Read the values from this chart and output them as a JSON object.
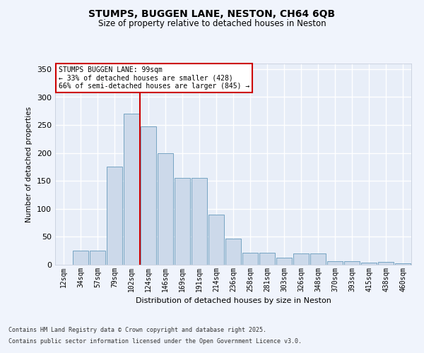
{
  "title_line1": "STUMPS, BUGGEN LANE, NESTON, CH64 6QB",
  "title_line2": "Size of property relative to detached houses in Neston",
  "xlabel": "Distribution of detached houses by size in Neston",
  "ylabel": "Number of detached properties",
  "categories": [
    "12sqm",
    "34sqm",
    "57sqm",
    "79sqm",
    "102sqm",
    "124sqm",
    "146sqm",
    "169sqm",
    "191sqm",
    "214sqm",
    "236sqm",
    "258sqm",
    "281sqm",
    "303sqm",
    "326sqm",
    "348sqm",
    "370sqm",
    "393sqm",
    "415sqm",
    "438sqm",
    "460sqm"
  ],
  "values": [
    0,
    25,
    25,
    175,
    270,
    248,
    200,
    155,
    155,
    90,
    47,
    22,
    22,
    13,
    20,
    20,
    6,
    6,
    4,
    5,
    2
  ],
  "bar_color": "#ccd9ea",
  "bar_edge_color": "#6699bb",
  "bg_color": "#e8eef8",
  "fig_bg_color": "#f0f4fc",
  "grid_color": "#d0d8e8",
  "red_line_index": 4,
  "annotation_text": "STUMPS BUGGEN LANE: 99sqm\n← 33% of detached houses are smaller (428)\n66% of semi-detached houses are larger (845) →",
  "ylim_max": 360,
  "yticks": [
    0,
    50,
    100,
    150,
    200,
    250,
    300,
    350
  ],
  "footnote1": "Contains HM Land Registry data © Crown copyright and database right 2025.",
  "footnote2": "Contains public sector information licensed under the Open Government Licence v3.0."
}
